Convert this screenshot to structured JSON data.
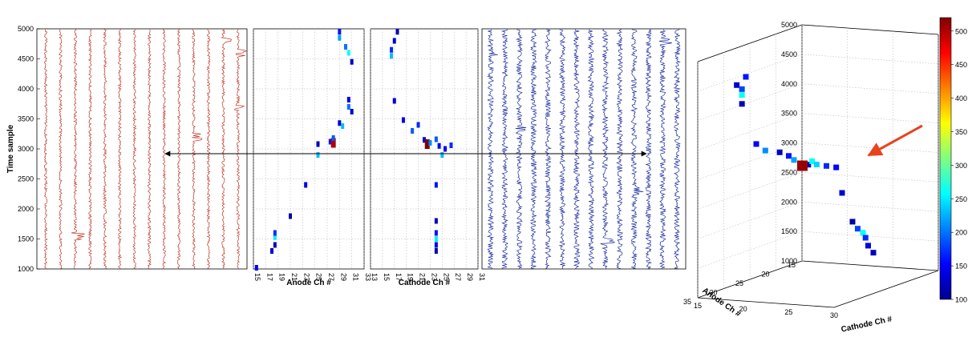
{
  "colors": {
    "anode_waveform": "#c0392b",
    "cathode_waveform": "#1c2ea0",
    "arrow_black": "#000000",
    "arrow_red": "#e8431f",
    "grid": "#b0b0b0"
  },
  "chart_data": [
    {
      "type": "line",
      "id": "anode-waveforms",
      "ylabel": "Time sample",
      "xlabel": "",
      "ylim": [
        1000,
        5000
      ],
      "yticks": [
        "1000",
        "1500",
        "2000",
        "2500",
        "3000",
        "3500",
        "4000",
        "4500",
        "5000"
      ],
      "traces": 14,
      "color": "#c0392b",
      "spikes": [
        {
          "trace": 2,
          "t": 1550
        },
        {
          "trace": 12,
          "t": 4800
        },
        {
          "trace": 13,
          "t": 4600
        },
        {
          "trace": 10,
          "t": 3200
        },
        {
          "trace": 13,
          "t": 3700
        }
      ]
    },
    {
      "type": "heatmap",
      "id": "anode-hits",
      "xlabel": "Anode Ch #",
      "xlim": [
        15,
        33
      ],
      "ylim": [
        1000,
        5000
      ],
      "xticks": [
        "15",
        "17",
        "19",
        "21",
        "23",
        "25",
        "27",
        "29",
        "31",
        "33"
      ],
      "points": [
        [
          15.5,
          1020,
          150
        ],
        [
          18.0,
          1300,
          130
        ],
        [
          18.5,
          1400,
          120
        ],
        [
          18.5,
          1530,
          250
        ],
        [
          18.5,
          1600,
          170
        ],
        [
          21.0,
          1880,
          110
        ],
        [
          23.5,
          2400,
          140
        ],
        [
          25.5,
          2900,
          230
        ],
        [
          25.5,
          3080,
          120
        ],
        [
          27.5,
          3120,
          160
        ],
        [
          28.0,
          3100,
          500
        ],
        [
          28.0,
          3180,
          190
        ],
        [
          29.0,
          3430,
          130
        ],
        [
          29.5,
          3380,
          230
        ],
        [
          30.5,
          3700,
          200
        ],
        [
          30.5,
          3820,
          140
        ],
        [
          31.0,
          3620,
          130
        ],
        [
          31.0,
          4450,
          120
        ],
        [
          30.5,
          4600,
          260
        ],
        [
          30.0,
          4700,
          200
        ],
        [
          29.0,
          4850,
          220
        ],
        [
          29.0,
          4950,
          160
        ]
      ]
    },
    {
      "type": "heatmap",
      "id": "cathode-hits",
      "xlabel": "Cathode Ch #",
      "xlim": [
        13,
        31
      ],
      "ylim": [
        1000,
        5000
      ],
      "xticks": [
        "13",
        "15",
        "17",
        "19",
        "21",
        "23",
        "25",
        "27",
        "29",
        "31"
      ],
      "points": [
        [
          16.5,
          4650,
          170
        ],
        [
          16.5,
          4550,
          230
        ],
        [
          17.0,
          4800,
          130
        ],
        [
          17.5,
          4950,
          120
        ],
        [
          17.0,
          3800,
          130
        ],
        [
          18.5,
          3480,
          140
        ],
        [
          20.0,
          3300,
          190
        ],
        [
          21.0,
          3400,
          170
        ],
        [
          22.0,
          3150,
          140
        ],
        [
          22.5,
          3080,
          520
        ],
        [
          23.0,
          3100,
          210
        ],
        [
          24.0,
          3160,
          190
        ],
        [
          24.5,
          3050,
          150
        ],
        [
          25.5,
          3000,
          150
        ],
        [
          26.5,
          3060,
          170
        ],
        [
          25.0,
          2900,
          230
        ],
        [
          24.0,
          2400,
          160
        ],
        [
          24.0,
          1800,
          120
        ],
        [
          24.0,
          1600,
          160
        ],
        [
          24.0,
          1500,
          250
        ],
        [
          24.0,
          1400,
          140
        ],
        [
          24.0,
          1300,
          120
        ]
      ]
    },
    {
      "type": "line",
      "id": "cathode-waveforms",
      "xlabel": "",
      "ylim": [
        1000,
        5000
      ],
      "traces": 14,
      "color": "#1c2ea0",
      "spikes": [
        {
          "trace": 0,
          "t": 4600
        },
        {
          "trace": 2,
          "t": 3300
        },
        {
          "trace": 8,
          "t": 1450
        },
        {
          "trace": 12,
          "t": 4800
        },
        {
          "trace": 10,
          "t": 2300
        }
      ]
    },
    {
      "type": "scatter",
      "id": "hits-3d",
      "xlabel": "Anode Ch #",
      "ylabel": "Cathode Ch #",
      "zlabel": "",
      "xlim": [
        15,
        35
      ],
      "ylim": [
        15,
        30
      ],
      "zlim": [
        1000,
        5000
      ],
      "xticks": [
        "15",
        "20",
        "25",
        "30",
        "35"
      ],
      "yticks": [
        "15",
        "20",
        "25",
        "30"
      ],
      "zticks": [
        "1000",
        "1500",
        "2000",
        "2500",
        "3000",
        "3500",
        "4000",
        "4500",
        "5000"
      ],
      "colorbar": {
        "min": 100,
        "max": 520,
        "ticks": [
          "100",
          "150",
          "200",
          "250",
          "300",
          "350",
          "400",
          "450",
          "500"
        ]
      },
      "points": [
        [
          31,
          18,
          4650,
          160
        ],
        [
          31,
          17,
          4500,
          130
        ],
        [
          30,
          17,
          4400,
          180
        ],
        [
          30,
          17,
          4300,
          260
        ],
        [
          30,
          17,
          4150,
          120
        ],
        [
          29,
          18,
          3450,
          150
        ],
        [
          29,
          19,
          3350,
          210
        ],
        [
          28,
          20,
          3300,
          120
        ],
        [
          28,
          21,
          3250,
          160
        ],
        [
          27,
          21,
          3150,
          220
        ],
        [
          26,
          22,
          3050,
          120
        ],
        [
          28,
          22.5,
          3100,
          510
        ],
        [
          27,
          23,
          3150,
          260
        ],
        [
          27,
          23.5,
          3100,
          240
        ],
        [
          26,
          24,
          3050,
          170
        ],
        [
          25,
          24.5,
          3000,
          150
        ],
        [
          23,
          24,
          2500,
          130
        ],
        [
          21,
          24,
          1950,
          110
        ],
        [
          20,
          24,
          1800,
          180
        ],
        [
          19,
          24,
          1700,
          260
        ],
        [
          18.5,
          24,
          1600,
          170
        ],
        [
          18,
          24,
          1450,
          140
        ],
        [
          17,
          24,
          1300,
          120
        ]
      ]
    }
  ]
}
